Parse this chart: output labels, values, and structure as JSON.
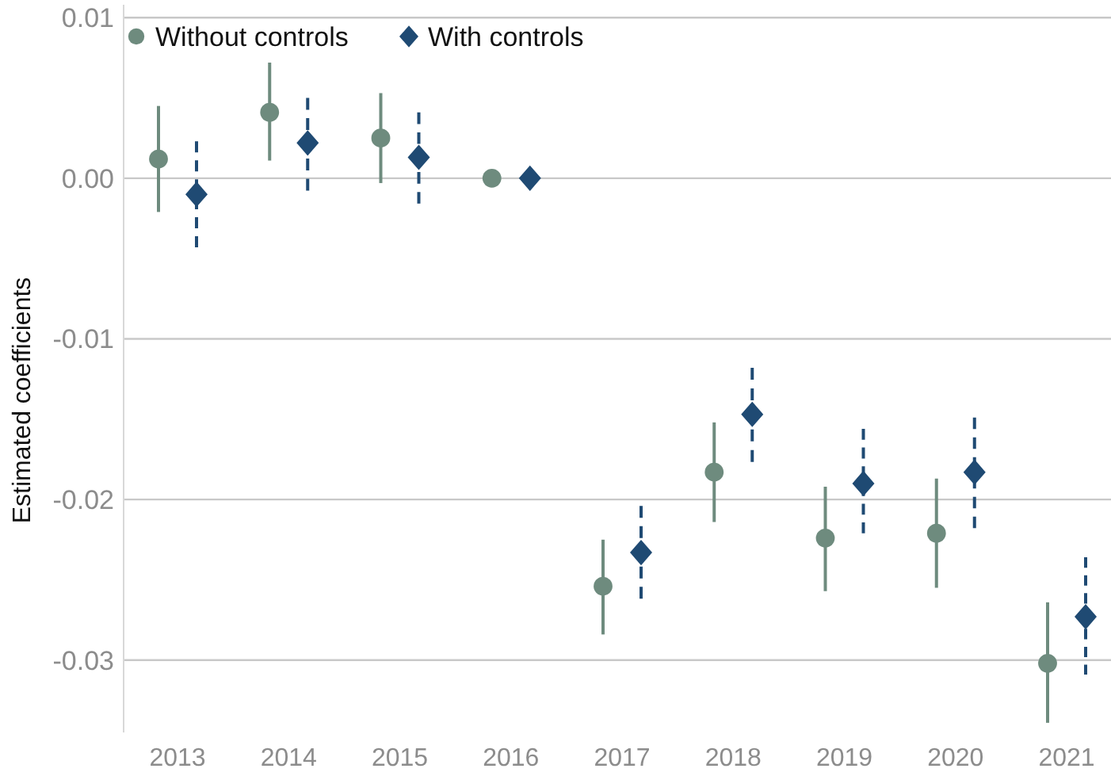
{
  "chart_data": {
    "type": "scatter",
    "ylabel": "Estimated coefficients",
    "categories": [
      "2013",
      "2014",
      "2015",
      "2016",
      "2017",
      "2018",
      "2019",
      "2020",
      "2021"
    ],
    "ylim": [
      -0.0345,
      0.0108
    ],
    "yticks": [
      0.01,
      {
        "value": 0,
        "label": "0.00"
      },
      -0.01,
      -0.02,
      -0.03
    ],
    "grid": "y",
    "legend": "top left",
    "series": [
      {
        "name": "Without controls",
        "color": "#6e8b7e",
        "marker": "circle",
        "line_style": "solid",
        "values": [
          0.0012,
          0.0041,
          0.0025,
          0,
          -0.0254,
          -0.0183,
          -0.0224,
          -0.0221,
          -0.0302
        ],
        "errors": [
          [
            -0.0021,
            0.0045
          ],
          [
            0.0011,
            0.0072
          ],
          [
            -0.0003,
            0.0053
          ],
          null,
          [
            -0.0284,
            -0.0225
          ],
          [
            -0.0214,
            -0.0152
          ],
          [
            -0.0257,
            -0.0192
          ],
          [
            -0.0255,
            -0.0187
          ],
          [
            -0.0339,
            -0.0264
          ]
        ]
      },
      {
        "name": "With controls",
        "color": "#1f4a73",
        "marker": "diamond",
        "line_style": "dashed",
        "values": [
          -0.001,
          0.0022,
          0.0013,
          0,
          -0.0233,
          -0.0147,
          -0.019,
          -0.0183,
          -0.0273
        ],
        "errors": [
          [
            -0.0043,
            0.0023
          ],
          [
            -0.0008,
            0.005
          ],
          [
            -0.0016,
            0.0041
          ],
          null,
          [
            -0.0262,
            -0.0204
          ],
          [
            -0.0177,
            -0.0118
          ],
          [
            -0.0221,
            -0.0156
          ],
          [
            -0.0218,
            -0.0149
          ],
          [
            -0.0309,
            -0.0236
          ]
        ]
      }
    ]
  }
}
